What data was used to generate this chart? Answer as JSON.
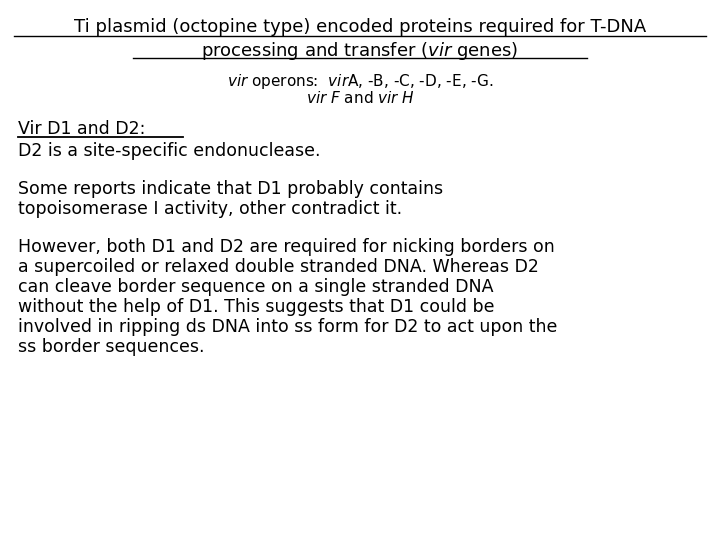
{
  "title_line1": "Ti plasmid (octopine type) encoded proteins required for T-DNA",
  "title_line2": "processing and transfer (​vir​ genes)",
  "section_heading": "Vir D1 and D2:",
  "para1_line1": "D2 is a site-specific endonuclease.",
  "para2_line1": "Some reports indicate that D1 probably contains",
  "para2_line2": "topoisomerase I activity, other contradict it.",
  "para3_line1": "However, both D1 and D2 are required for nicking borders on",
  "para3_line2": "a supercoiled or relaxed double stranded DNA. Whereas D2",
  "para3_line3": "can cleave border sequence on a single stranded DNA",
  "para3_line4": "without the help of D1. This suggests that D1 could be",
  "para3_line5": "involved in ripping ds DNA into ss form for D2 to act upon the",
  "para3_line6": "ss border sequences.",
  "bg_color": "#ffffff",
  "text_color": "#000000",
  "title_fontsize": 13.0,
  "subtitle_fontsize": 11.0,
  "body_fontsize": 12.5,
  "heading_fontsize": 12.5
}
